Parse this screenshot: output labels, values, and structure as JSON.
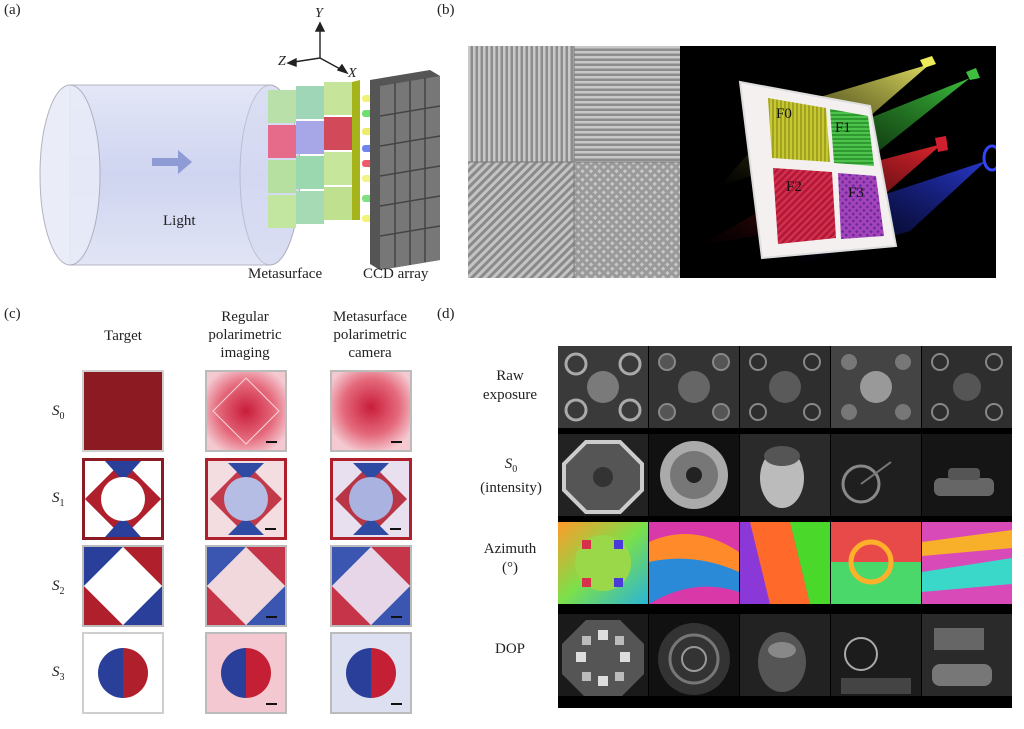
{
  "panels": {
    "a": "(a)",
    "b": "(b)",
    "c": "(c)",
    "d": "(d)"
  },
  "panel_a": {
    "light_label": "Light",
    "metasurface_label": "Metasurface",
    "ccd_label": "CCD array",
    "axis_y": "Y",
    "axis_z": "Z",
    "axis_x": "X"
  },
  "panel_b": {
    "f0": "F0",
    "f1": "F1",
    "f2": "F2",
    "f3": "F3"
  },
  "panel_c": {
    "columns": [
      "Target",
      "Regular polarimetric imaging",
      "Metasurface polarimetric camera"
    ],
    "col_target": "Target",
    "col_regular_1": "Regular",
    "col_regular_2": "polarimetric",
    "col_regular_3": "imaging",
    "col_meta_1": "Metasurface",
    "col_meta_2": "polarimetric",
    "col_meta_3": "camera",
    "rows": [
      {
        "s": "S",
        "sub": "0"
      },
      {
        "s": "S",
        "sub": "1"
      },
      {
        "s": "S",
        "sub": "2"
      },
      {
        "s": "S",
        "sub": "3"
      }
    ]
  },
  "panel_d": {
    "raw_1": "Raw",
    "raw_2": "exposure",
    "s0_s": "S",
    "s0_sub": "0",
    "s0_2": "(intensity)",
    "az_1": "Azimuth",
    "az_2": "(°)",
    "dop": "DOP"
  },
  "colors": {
    "red": "#b0202c",
    "blue": "#2a3f9a",
    "dark_red": "#8b1a22",
    "pink": "#e2495f"
  }
}
